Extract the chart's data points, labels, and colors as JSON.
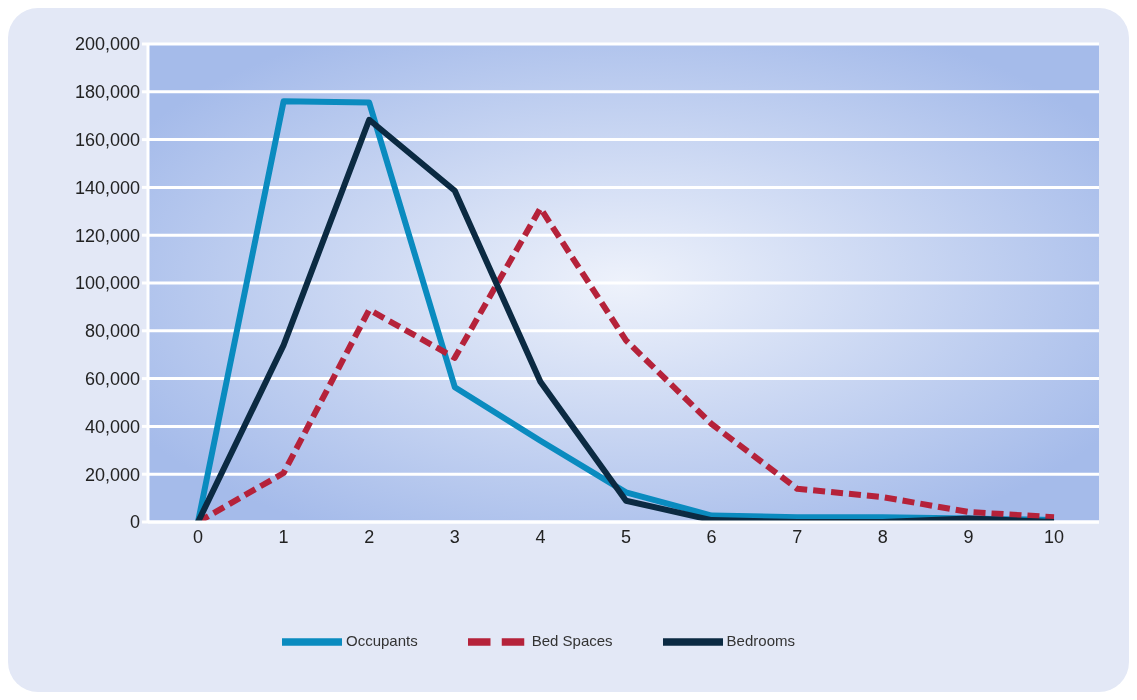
{
  "chart_data": {
    "type": "line",
    "categories": [
      "0",
      "1",
      "2",
      "3",
      "4",
      "5",
      "6",
      "7",
      "8",
      "9",
      "10"
    ],
    "series": [
      {
        "name": "Occupants",
        "color": "#0a8bbf",
        "line_style": "solid",
        "values": [
          0,
          176000,
          175500,
          56400,
          34000,
          12400,
          2700,
          2000,
          2000,
          1500,
          800
        ]
      },
      {
        "name": "Bed Spaces",
        "color": "#b5223a",
        "line_style": "dashed",
        "values": [
          0,
          20500,
          88800,
          68700,
          131300,
          76000,
          41000,
          13900,
          10400,
          4200,
          2000
        ]
      },
      {
        "name": "Bedrooms",
        "color": "#0b2a42",
        "line_style": "solid",
        "values": [
          0,
          74000,
          168300,
          138600,
          58700,
          8900,
          800,
          0,
          0,
          1500,
          0
        ]
      }
    ],
    "ylim": [
      0,
      200000
    ],
    "yticks": [
      0,
      {
        "value": 20000,
        "label": "20,000"
      },
      {
        "value": 40000,
        "label": "40,000"
      },
      {
        "value": 60000,
        "label": "60,000"
      },
      {
        "value": 80000,
        "label": "80,000"
      },
      {
        "value": 100000,
        "label": "100,000"
      },
      {
        "value": 120000,
        "label": "120,000"
      },
      {
        "value": 140000,
        "label": "140,000"
      },
      {
        "value": 160000,
        "label": "160,000"
      },
      {
        "value": 180000,
        "label": "180,000"
      },
      {
        "value": 200000,
        "label": "200,000"
      }
    ],
    "grid": "y",
    "legend": "bottom",
    "marker": "none"
  }
}
